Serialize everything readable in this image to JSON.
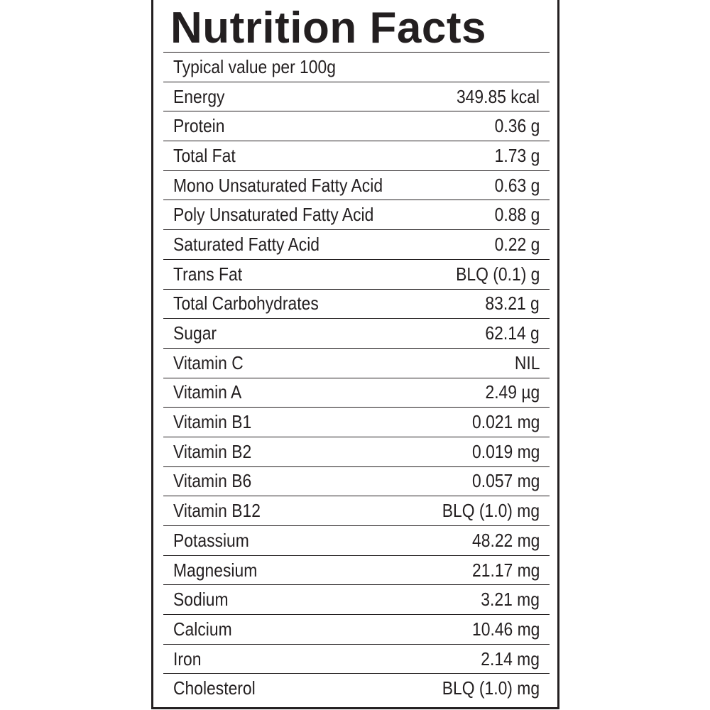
{
  "label": {
    "title": "Nutrition Facts",
    "serving": "Typical value per 100g",
    "nutrients": [
      {
        "name": "Energy",
        "value": "349.85 kcal"
      },
      {
        "name": "Protein",
        "value": "0.36 g"
      },
      {
        "name": "Total Fat",
        "value": "1.73 g"
      },
      {
        "name": "Mono Unsaturated Fatty Acid",
        "value": "0.63 g"
      },
      {
        "name": "Poly Unsaturated Fatty Acid",
        "value": "0.88 g"
      },
      {
        "name": "Saturated Fatty Acid",
        "value": "0.22 g"
      },
      {
        "name": "Trans Fat",
        "value": "BLQ (0.1) g"
      },
      {
        "name": "Total Carbohydrates",
        "value": "83.21 g"
      },
      {
        "name": "Sugar",
        "value": "62.14 g"
      },
      {
        "name": "Vitamin C",
        "value": "NIL"
      },
      {
        "name": "Vitamin A",
        "value": "2.49 µg"
      },
      {
        "name": "Vitamin B1",
        "value": "0.021 mg"
      },
      {
        "name": "Vitamin B2",
        "value": "0.019 mg"
      },
      {
        "name": "Vitamin B6",
        "value": "0.057 mg"
      },
      {
        "name": "Vitamin B12",
        "value": "BLQ (1.0) mg"
      },
      {
        "name": "Potassium",
        "value": "48.22 mg"
      },
      {
        "name": "Magnesium",
        "value": "21.17 mg"
      },
      {
        "name": "Sodium",
        "value": "3.21 mg"
      },
      {
        "name": "Calcium",
        "value": "10.46 mg"
      },
      {
        "name": "Iron",
        "value": "2.14 mg"
      },
      {
        "name": "Cholesterol",
        "value": "BLQ (1.0) mg"
      }
    ]
  },
  "colors": {
    "ink": "#231f20",
    "background": "#ffffff"
  }
}
